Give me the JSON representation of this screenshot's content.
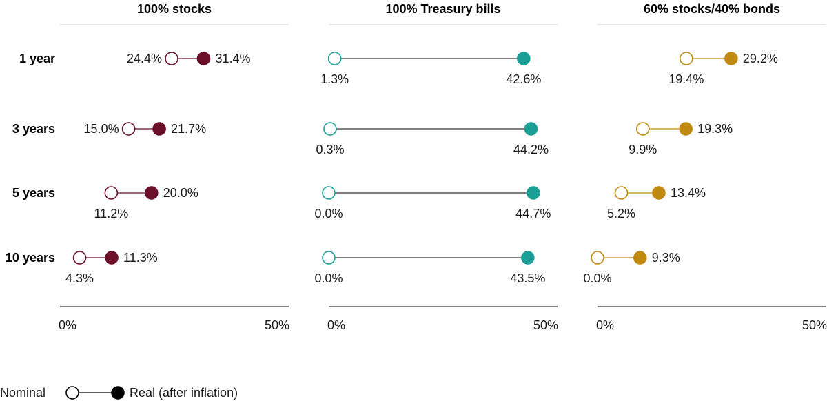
{
  "chart_data": {
    "type": "dumbbell",
    "rows": [
      "1 year",
      "3 years",
      "5 years",
      "10 years"
    ],
    "x_ticks": [
      "0%",
      "50%"
    ],
    "xlim": [
      0,
      50
    ],
    "panels": [
      {
        "title": "100% stocks",
        "color": "#6b0f2a",
        "nominal": [
          24.4,
          15.0,
          11.2,
          4.3
        ],
        "real": [
          31.4,
          21.7,
          20.0,
          11.3
        ],
        "nominal_labels": [
          "24.4%",
          "15.0%",
          "11.2%",
          "4.3%"
        ],
        "real_labels": [
          "31.4%",
          "21.7%",
          "20.0%",
          "11.3%"
        ]
      },
      {
        "title": "100% Treasury bills",
        "color": "#1a9e96",
        "nominal": [
          1.3,
          0.3,
          0.0,
          0.0
        ],
        "real": [
          42.6,
          44.2,
          44.7,
          43.5
        ],
        "nominal_labels": [
          "1.3%",
          "0.3%",
          "0.0%",
          "0.0%"
        ],
        "real_labels": [
          "42.6%",
          "44.2%",
          "44.7%",
          "43.5%"
        ]
      },
      {
        "title": "60% stocks/40% bonds",
        "color": "#c08a10",
        "nominal": [
          19.4,
          9.9,
          5.2,
          0.0
        ],
        "real": [
          29.2,
          19.3,
          13.4,
          9.3
        ],
        "nominal_labels": [
          "19.4%",
          "9.9%",
          "5.2%",
          "0.0%"
        ],
        "real_labels": [
          "29.2%",
          "19.3%",
          "13.4%",
          "9.3%"
        ]
      }
    ]
  },
  "legend": {
    "nominal_label": "Nominal",
    "real_label": "Real (after inflation)",
    "color": "#000000"
  }
}
